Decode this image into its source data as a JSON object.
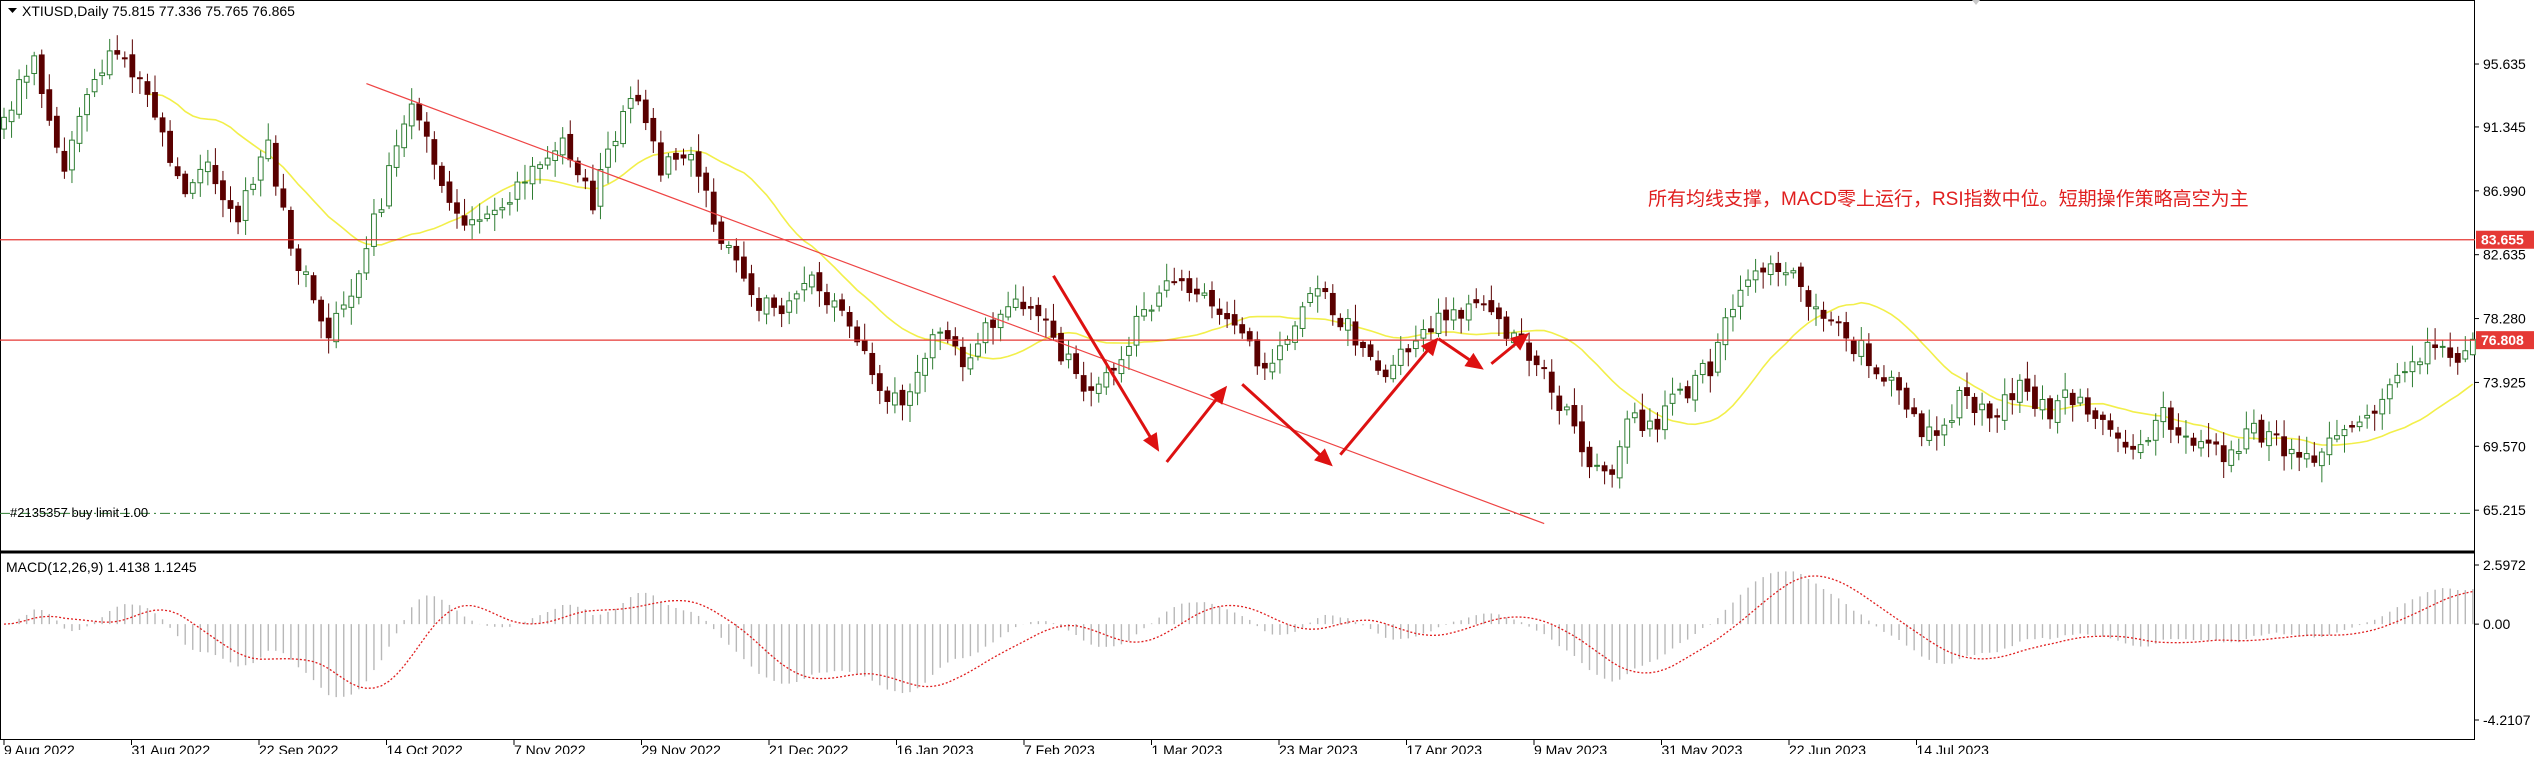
{
  "main_header": {
    "symbol_label": "XTIUSD,Daily",
    "ohlc_values": "75.815 77.336 75.765 76.865"
  },
  "annotation_text": "所有均线支撑，MACD零上运行，RSI指数中位。短期操作策略高空为主",
  "order_label": "#2135357 buy limit 1.00",
  "macd_header": "MACD(12,26,9) 1.4138 1.1245",
  "colors": {
    "bull": "#2e7d32",
    "bear": "#5a0000",
    "ma": "#f2ef4a",
    "trend": "#ee4444",
    "arrow": "#dd1111",
    "price_tag": "#e53935",
    "order_line": "#2e7d32",
    "grid": "#000000"
  },
  "chart_data": {
    "type": "candlestick",
    "instrument": "XTIUSD",
    "timeframe": "Daily",
    "price_axis": {
      "ticks": [
        "95.635",
        "91.345",
        "86.990",
        "82.635",
        "78.280",
        "73.925",
        "69.570",
        "65.215"
      ],
      "tick_values": [
        95.635,
        91.345,
        86.99,
        82.635,
        78.28,
        73.925,
        69.57,
        65.215
      ]
    },
    "time_axis_labels": [
      "9 Aug 2022",
      "31 Aug 2022",
      "22 Sep 2022",
      "14 Oct 2022",
      "7 Nov 2022",
      "29 Nov 2022",
      "21 Dec 2022",
      "16 Jan 2023",
      "7 Feb 2023",
      "1 Mar 2023",
      "23 Mar 2023",
      "17 Apr 2023",
      "9 May 2023",
      "31 May 2023",
      "22 Jun 2023",
      "14 Jul 2023"
    ],
    "close_anchors": [
      [
        0,
        92.0
      ],
      [
        4,
        95.6
      ],
      [
        8,
        88.0
      ],
      [
        12,
        95.0
      ],
      [
        16,
        96.5
      ],
      [
        19,
        93.0
      ],
      [
        24,
        87.0
      ],
      [
        27,
        88.5
      ],
      [
        31,
        85.5
      ],
      [
        35,
        90.0
      ],
      [
        38,
        83.5
      ],
      [
        43,
        77.5
      ],
      [
        47,
        81.5
      ],
      [
        51,
        88.0
      ],
      [
        54,
        93.0
      ],
      [
        58,
        87.0
      ],
      [
        62,
        84.5
      ],
      [
        66,
        86.5
      ],
      [
        70,
        88.0
      ],
      [
        74,
        90.0
      ],
      [
        78,
        86.0
      ],
      [
        81,
        91.0
      ],
      [
        84,
        93.5
      ],
      [
        87,
        88.5
      ],
      [
        91,
        89.5
      ],
      [
        95,
        84.0
      ],
      [
        99,
        80.0
      ],
      [
        103,
        78.0
      ],
      [
        107,
        81.0
      ],
      [
        111,
        79.0
      ],
      [
        115,
        74.5
      ],
      [
        119,
        72.0
      ],
      [
        123,
        77.5
      ],
      [
        127,
        75.0
      ],
      [
        131,
        78.0
      ],
      [
        135,
        79.5
      ],
      [
        139,
        77.0
      ],
      [
        143,
        73.5
      ],
      [
        147,
        75.0
      ],
      [
        151,
        79.0
      ],
      [
        155,
        80.5
      ],
      [
        159,
        80.0
      ],
      [
        163,
        78.0
      ],
      [
        167,
        75.0
      ],
      [
        171,
        78.5
      ],
      [
        175,
        80.0
      ],
      [
        179,
        77.0
      ],
      [
        183,
        74.5
      ],
      [
        187,
        77.0
      ],
      [
        191,
        78.5
      ],
      [
        195,
        79.5
      ],
      [
        199,
        77.0
      ],
      [
        203,
        75.0
      ],
      [
        207,
        71.5
      ],
      [
        210,
        68.0
      ],
      [
        213,
        67.0
      ],
      [
        215,
        72.0
      ],
      [
        218,
        70.5
      ],
      [
        222,
        73.0
      ],
      [
        226,
        75.0
      ],
      [
        230,
        81.0
      ],
      [
        234,
        82.5
      ],
      [
        238,
        80.5
      ],
      [
        242,
        78.0
      ],
      [
        246,
        76.0
      ],
      [
        250,
        73.5
      ],
      [
        253,
        71.5
      ],
      [
        256,
        70.0
      ],
      [
        259,
        73.0
      ],
      [
        263,
        71.5
      ],
      [
        267,
        73.5
      ],
      [
        271,
        72.0
      ],
      [
        274,
        73.0
      ],
      [
        278,
        71.0
      ],
      [
        282,
        69.5
      ],
      [
        286,
        71.5
      ],
      [
        290,
        70.0
      ],
      [
        294,
        69.0
      ],
      [
        298,
        71.0
      ],
      [
        302,
        69.5
      ],
      [
        306,
        69.0
      ],
      [
        310,
        70.5
      ],
      [
        314,
        72.5
      ],
      [
        318,
        75.0
      ],
      [
        322,
        76.5
      ],
      [
        324,
        75.0
      ],
      [
        327,
        76.9
      ]
    ],
    "series_notes": [
      "candles",
      "moving average (yellow)",
      "MACD histogram",
      "MACD signal (red dotted)"
    ],
    "horizontal_levels": [
      {
        "value": 83.655,
        "label": "83.655"
      },
      {
        "value": 76.808,
        "label": "76.808"
      }
    ],
    "pending_order": {
      "value": 65.0,
      "label": "#2135357 buy limit 1.00"
    },
    "trendline": {
      "from": {
        "bar": 48,
        "price": 94.3
      },
      "to": {
        "bar": 204,
        "price": 64.3
      }
    },
    "arrows": [
      {
        "from": {
          "bar": 139,
          "price": 81.2
        },
        "to": {
          "bar": 153,
          "price": 69.2
        }
      },
      {
        "from": {
          "bar": 154,
          "price": 68.5
        },
        "to": {
          "bar": 162,
          "price": 73.7
        }
      },
      {
        "from": {
          "bar": 164,
          "price": 73.8
        },
        "to": {
          "bar": 176,
          "price": 68.2
        }
      },
      {
        "from": {
          "bar": 177,
          "price": 69.0
        },
        "to": {
          "bar": 190,
          "price": 77.0
        }
      },
      {
        "from": {
          "bar": 190,
          "price": 76.9
        },
        "to": {
          "bar": 196,
          "price": 74.8
        }
      },
      {
        "from": {
          "bar": 197,
          "price": 75.2
        },
        "to": {
          "bar": 202,
          "price": 77.3
        }
      }
    ],
    "macd_axis": {
      "ticks": [
        "2.5972",
        "0.00",
        "-4.2107"
      ],
      "tick_values": [
        2.5972,
        0.0,
        -4.2107
      ]
    },
    "macd_header": "MACD(12,26,9) 1.4138 1.1245",
    "macd_last": {
      "macd": 1.4138,
      "signal": 1.1245
    }
  }
}
